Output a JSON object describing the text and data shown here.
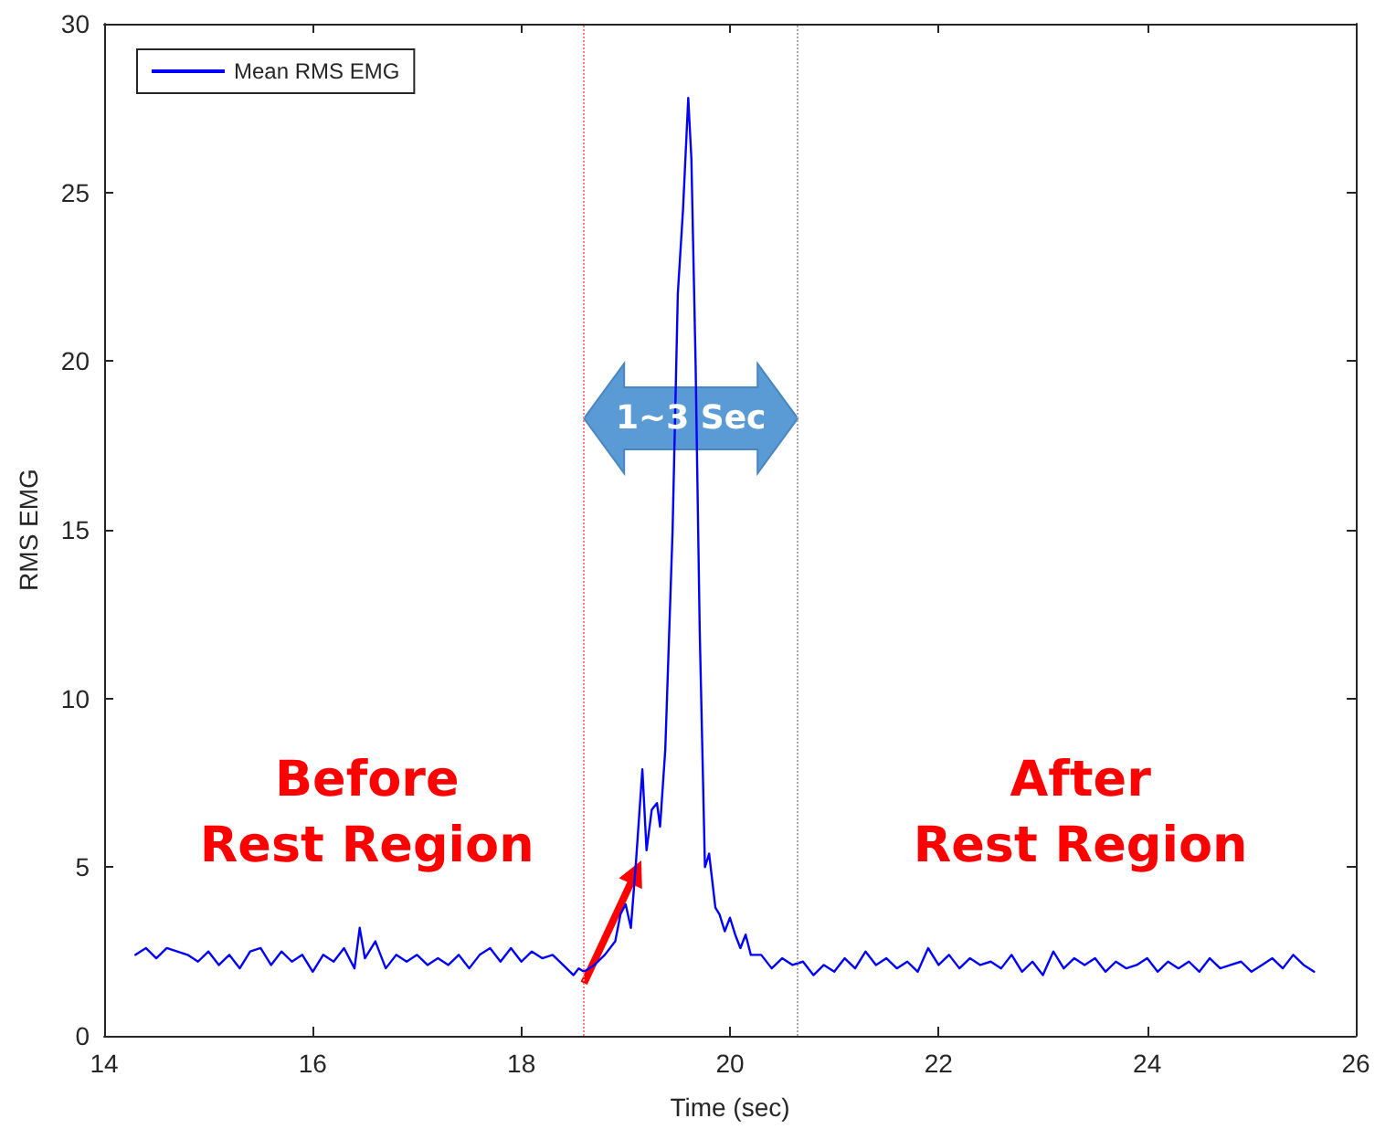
{
  "chart_data": {
    "type": "line",
    "xlabel": "Time (sec)",
    "ylabel": "RMS EMG",
    "xlim": [
      14,
      26
    ],
    "xticks": [
      14,
      16,
      18,
      20,
      22,
      24,
      26
    ],
    "ylim": [
      0,
      30
    ],
    "yticks": [
      0,
      5,
      10,
      15,
      20,
      25,
      30
    ],
    "grid": false,
    "legend": "top left",
    "marker": "none",
    "line_style": "solid",
    "series": [
      {
        "name": "Mean RMS EMG",
        "color": "#0000ff",
        "x": [
          14.3,
          14.4,
          14.5,
          14.6,
          14.7,
          14.8,
          14.9,
          15.0,
          15.1,
          15.2,
          15.3,
          15.4,
          15.5,
          15.6,
          15.7,
          15.8,
          15.9,
          16.0,
          16.1,
          16.2,
          16.3,
          16.4,
          16.45,
          16.5,
          16.6,
          16.7,
          16.8,
          16.9,
          17.0,
          17.1,
          17.2,
          17.3,
          17.4,
          17.5,
          17.6,
          17.7,
          17.8,
          17.9,
          18.0,
          18.1,
          18.2,
          18.3,
          18.4,
          18.5,
          18.55,
          18.6,
          18.7,
          18.8,
          18.9,
          18.95,
          19.0,
          19.05,
          19.1,
          19.16,
          19.2,
          19.25,
          19.3,
          19.33,
          19.38,
          19.45,
          19.5,
          19.55,
          19.6,
          19.63,
          19.67,
          19.71,
          19.76,
          19.8,
          19.83,
          19.86,
          19.9,
          19.95,
          20.0,
          20.05,
          20.1,
          20.15,
          20.2,
          20.3,
          20.4,
          20.5,
          20.6,
          20.7,
          20.8,
          20.9,
          21.0,
          21.1,
          21.2,
          21.3,
          21.4,
          21.5,
          21.6,
          21.7,
          21.8,
          21.9,
          22.0,
          22.1,
          22.2,
          22.3,
          22.4,
          22.5,
          22.6,
          22.7,
          22.8,
          22.9,
          23.0,
          23.1,
          23.2,
          23.3,
          23.4,
          23.5,
          23.6,
          23.7,
          23.8,
          23.9,
          24.0,
          24.1,
          24.2,
          24.3,
          24.4,
          24.5,
          24.6,
          24.7,
          24.8,
          24.9,
          25.0,
          25.1,
          25.2,
          25.3,
          25.4,
          25.5,
          25.6
        ],
        "values": [
          2.4,
          2.6,
          2.3,
          2.6,
          2.5,
          2.4,
          2.2,
          2.5,
          2.1,
          2.4,
          2.0,
          2.5,
          2.6,
          2.1,
          2.5,
          2.2,
          2.4,
          1.9,
          2.4,
          2.2,
          2.6,
          2.0,
          3.2,
          2.3,
          2.8,
          2.0,
          2.4,
          2.2,
          2.4,
          2.1,
          2.3,
          2.1,
          2.4,
          2.0,
          2.4,
          2.6,
          2.2,
          2.6,
          2.2,
          2.5,
          2.3,
          2.4,
          2.1,
          1.8,
          2.0,
          1.9,
          2.1,
          2.4,
          2.8,
          3.6,
          3.9,
          3.2,
          5.2,
          7.9,
          5.5,
          6.7,
          6.9,
          6.2,
          8.5,
          15,
          22,
          24.5,
          27.8,
          26,
          20,
          12,
          5.0,
          5.4,
          4.6,
          3.8,
          3.6,
          3.1,
          3.5,
          3.0,
          2.6,
          3.0,
          2.4,
          2.4,
          2.0,
          2.3,
          2.1,
          2.2,
          1.8,
          2.1,
          1.9,
          2.3,
          2.0,
          2.5,
          2.1,
          2.3,
          2.0,
          2.2,
          1.9,
          2.6,
          2.1,
          2.4,
          2.0,
          2.3,
          2.1,
          2.2,
          2.0,
          2.4,
          1.9,
          2.2,
          1.8,
          2.5,
          2.0,
          2.3,
          2.1,
          2.3,
          1.9,
          2.2,
          2.0,
          2.1,
          2.3,
          1.9,
          2.2,
          2.0,
          2.2,
          1.9,
          2.3,
          2.0,
          2.1,
          2.2,
          1.9,
          2.1,
          2.3,
          2.0,
          2.4,
          2.1,
          1.9
        ]
      }
    ],
    "ref_lines": [
      {
        "axis": "x",
        "value": 18.6,
        "color": "#ff8080",
        "line_style": "dotted"
      },
      {
        "axis": "x",
        "value": 20.65,
        "color": "#aaaaaa",
        "line_style": "dotted"
      }
    ],
    "annotations": [
      {
        "text": "Before\nRest Region",
        "x": 19.15,
        "y": 5.2
      },
      "After\nRest Region",
      "1~3 Sec"
    ]
  }
}
